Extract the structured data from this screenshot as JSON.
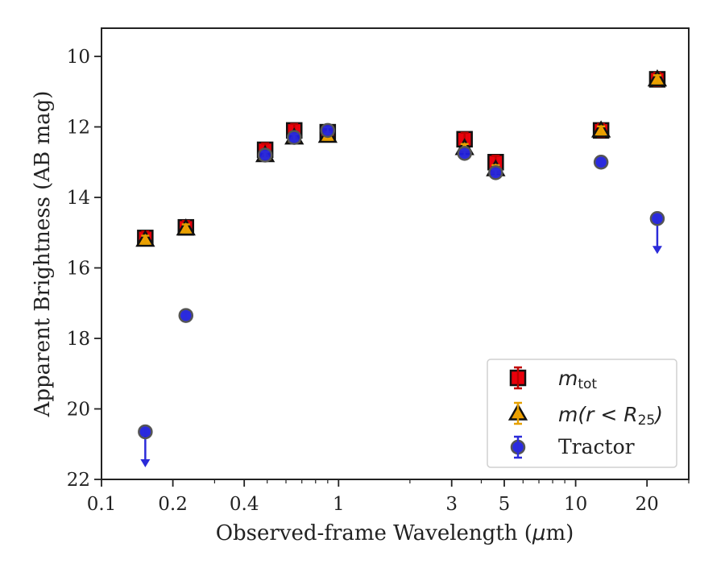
{
  "chart_data": {
    "type": "scatter",
    "xscale": "log",
    "xlim": [
      0.1,
      30
    ],
    "ylim": [
      22,
      9.2
    ],
    "y_inverted": true,
    "xlabel_prefix": "Observed-frame Wavelength (",
    "xlabel_unit_mu": "μ",
    "xlabel_unit_rest": "m)",
    "ylabel": "Apparent Brightness (AB mag)",
    "x_ticks": [
      {
        "value": 0.1,
        "label": "0.1"
      },
      {
        "value": 0.2,
        "label": "0.2"
      },
      {
        "value": 0.4,
        "label": "0.4"
      },
      {
        "value": 1,
        "label": "1"
      },
      {
        "value": 3,
        "label": "3"
      },
      {
        "value": 5,
        "label": "5"
      },
      {
        "value": 10,
        "label": "10"
      },
      {
        "value": 20,
        "label": "20"
      }
    ],
    "y_ticks": [
      10,
      12,
      14,
      16,
      18,
      20,
      22
    ],
    "legend_position": "lower right",
    "series": [
      {
        "key": "mtot",
        "name": "m_tot",
        "marker": "square",
        "color": "#e8000b",
        "errcolor": "#c00000",
        "x": [
          0.153,
          0.227,
          0.49,
          0.65,
          0.9,
          3.4,
          4.6,
          12.8,
          22.1
        ],
        "y": [
          15.15,
          14.85,
          12.65,
          12.1,
          12.15,
          12.35,
          13.0,
          12.1,
          10.65
        ]
      },
      {
        "key": "mr25",
        "name": "m(r < R25)",
        "marker": "triangle",
        "color": "#f0a000",
        "errcolor": "#e6a000",
        "x": [
          0.153,
          0.227,
          0.49,
          0.65,
          0.9,
          3.4,
          4.6,
          12.8,
          22.1
        ],
        "y": [
          15.2,
          14.88,
          12.8,
          12.3,
          12.25,
          12.6,
          13.2,
          12.1,
          10.65
        ]
      },
      {
        "key": "tractor",
        "name": "Tractor",
        "marker": "circle",
        "color": "#1f1fe0",
        "errcolor": "#2b2bd9",
        "x": [
          0.153,
          0.227,
          0.49,
          0.65,
          0.9,
          3.4,
          4.6,
          12.8,
          22.1
        ],
        "y": [
          20.65,
          17.35,
          12.8,
          12.3,
          12.1,
          12.75,
          13.3,
          13.0,
          14.6
        ],
        "upper_limit": [
          true,
          false,
          false,
          false,
          false,
          false,
          false,
          false,
          true
        ]
      }
    ]
  },
  "legend": {
    "mtot_main": "m",
    "mtot_sub": "tot",
    "mr25_main_a": "m",
    "mr25_main_b": "(r < R",
    "mr25_sub": "25",
    "mr25_close": ")",
    "tractor": "Tractor"
  }
}
